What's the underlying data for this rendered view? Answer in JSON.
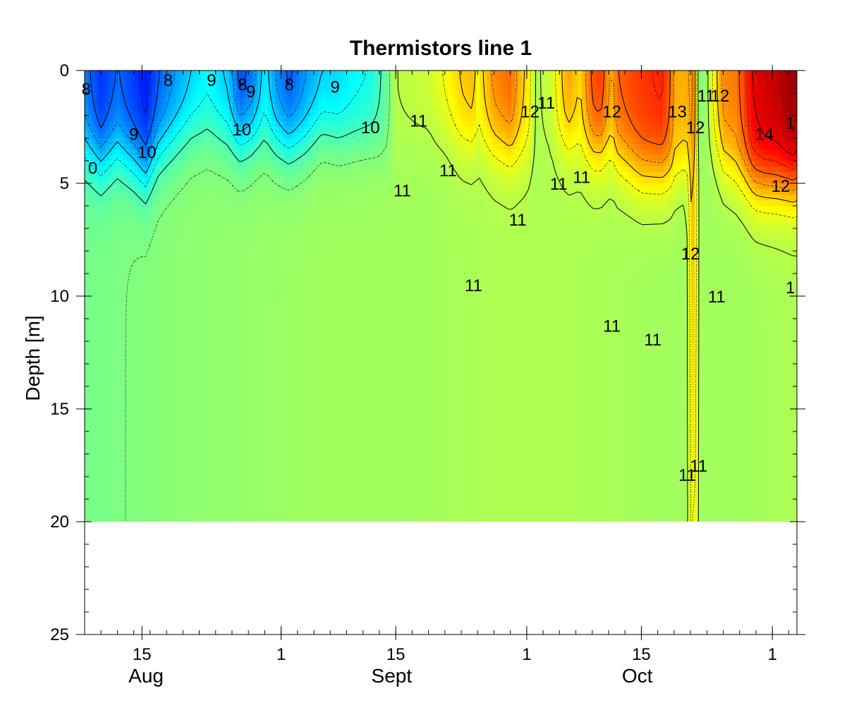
{
  "chart_data": {
    "type": "heatmap",
    "title": "Thermistors line 1",
    "ylabel": "Depth [m]",
    "xlabel": "",
    "ylim": [
      0,
      25
    ],
    "y_inverted": true,
    "data_depth_range": [
      0,
      20
    ],
    "y_ticks": [
      0,
      5,
      10,
      15,
      20,
      25
    ],
    "y_tick_labels": [
      "0",
      "5",
      "10",
      "15",
      "20",
      "25"
    ],
    "x_range_days": [
      0,
      87
    ],
    "x_ticks": [
      {
        "day": 7,
        "label": "15"
      },
      {
        "day": 24,
        "label": "1"
      },
      {
        "day": 38,
        "label": "15"
      },
      {
        "day": 54,
        "label": "1"
      },
      {
        "day": 68,
        "label": "15"
      },
      {
        "day": 84,
        "label": "1"
      }
    ],
    "month_labels": [
      {
        "day": 7.5,
        "label": "Aug"
      },
      {
        "day": 37.5,
        "label": "Sept"
      },
      {
        "day": 67.5,
        "label": "Oct"
      }
    ],
    "colormap": "jet",
    "color_range": [
      6,
      15
    ],
    "contour_labels": [
      {
        "day": 0.2,
        "depth": 0.8,
        "text": "8"
      },
      {
        "day": 10.2,
        "depth": 0.4,
        "text": "8"
      },
      {
        "day": 15.5,
        "depth": 0.4,
        "text": "9"
      },
      {
        "day": 19.3,
        "depth": 0.6,
        "text": "8"
      },
      {
        "day": 20.3,
        "depth": 0.9,
        "text": "9"
      },
      {
        "day": 25.0,
        "depth": 0.6,
        "text": "8"
      },
      {
        "day": 30.6,
        "depth": 0.7,
        "text": "9"
      },
      {
        "day": 6.0,
        "depth": 2.8,
        "text": "9"
      },
      {
        "day": 7.6,
        "depth": 3.6,
        "text": "10"
      },
      {
        "day": 19.2,
        "depth": 2.6,
        "text": "10"
      },
      {
        "day": 34.9,
        "depth": 2.5,
        "text": "10"
      },
      {
        "day": 1.0,
        "depth": 4.3,
        "text": "0"
      },
      {
        "day": 40.8,
        "depth": 2.2,
        "text": "11"
      },
      {
        "day": 44.4,
        "depth": 4.4,
        "text": "11"
      },
      {
        "day": 38.8,
        "depth": 5.3,
        "text": "11"
      },
      {
        "day": 56.4,
        "depth": 1.4,
        "text": "11"
      },
      {
        "day": 54.4,
        "depth": 1.8,
        "text": "12"
      },
      {
        "day": 64.4,
        "depth": 1.8,
        "text": "12"
      },
      {
        "day": 57.9,
        "depth": 5.0,
        "text": "11"
      },
      {
        "day": 60.7,
        "depth": 4.7,
        "text": "11"
      },
      {
        "day": 52.9,
        "depth": 6.6,
        "text": "11"
      },
      {
        "day": 47.5,
        "depth": 9.5,
        "text": "11"
      },
      {
        "day": 72.4,
        "depth": 1.8,
        "text": "13"
      },
      {
        "day": 74.6,
        "depth": 2.5,
        "text": "12"
      },
      {
        "day": 75.9,
        "depth": 1.1,
        "text": "11"
      },
      {
        "day": 77.6,
        "depth": 1.1,
        "text": "12"
      },
      {
        "day": 83.0,
        "depth": 2.8,
        "text": "14"
      },
      {
        "day": 86.2,
        "depth": 2.3,
        "text": "1"
      },
      {
        "day": 85.0,
        "depth": 5.1,
        "text": "12"
      },
      {
        "day": 74.0,
        "depth": 8.1,
        "text": "12"
      },
      {
        "day": 77.2,
        "depth": 10.0,
        "text": "11"
      },
      {
        "day": 86.2,
        "depth": 9.6,
        "text": "1"
      },
      {
        "day": 64.4,
        "depth": 11.3,
        "text": "11"
      },
      {
        "day": 69.4,
        "depth": 11.9,
        "text": "11"
      },
      {
        "day": 75.0,
        "depth": 17.5,
        "text": "11"
      },
      {
        "day": 73.6,
        "depth": 17.9,
        "text": "11"
      }
    ],
    "fields": {
      "surface_temperature": [
        [
          0,
          8.2
        ],
        [
          2,
          7.5
        ],
        [
          4,
          8.0
        ],
        [
          6,
          7.6
        ],
        [
          7.5,
          7.3
        ],
        [
          9,
          7.9
        ],
        [
          10.5,
          8.3
        ],
        [
          13,
          8.9
        ],
        [
          15,
          9.3
        ],
        [
          17.5,
          8.8
        ],
        [
          19,
          7.7
        ],
        [
          20.5,
          8.1
        ],
        [
          22,
          9.2
        ],
        [
          23.5,
          8.3
        ],
        [
          25,
          7.8
        ],
        [
          27,
          8.4
        ],
        [
          29,
          8.9
        ],
        [
          31,
          9.0
        ],
        [
          33,
          9.3
        ],
        [
          35,
          9.5
        ],
        [
          37,
          10.3
        ],
        [
          38,
          11.0
        ],
        [
          40,
          11.1
        ],
        [
          42,
          11.2
        ],
        [
          44,
          11.6
        ],
        [
          46,
          12.1
        ],
        [
          47.5,
          12.3
        ],
        [
          48,
          11.7
        ],
        [
          50,
          12.7
        ],
        [
          52,
          13.0
        ],
        [
          53,
          12.4
        ],
        [
          54.5,
          11.6
        ],
        [
          55,
          10.9
        ],
        [
          57,
          11.2
        ],
        [
          59,
          12.5
        ],
        [
          60.5,
          12.0
        ],
        [
          62,
          13.2
        ],
        [
          63,
          13.4
        ],
        [
          64,
          12.6
        ],
        [
          64.5,
          12.4
        ],
        [
          65,
          13.0
        ],
        [
          67,
          13.3
        ],
        [
          69,
          13.5
        ],
        [
          70.5,
          13.6
        ],
        [
          71.5,
          13.1
        ],
        [
          72,
          12.4
        ],
        [
          73.5,
          12.3
        ],
        [
          74,
          11.5
        ],
        [
          75,
          10.4
        ],
        [
          75.8,
          10.7
        ],
        [
          77,
          11.8
        ],
        [
          78,
          12.7
        ],
        [
          79.5,
          12.8
        ],
        [
          80.5,
          13.3
        ],
        [
          81.5,
          14.0
        ],
        [
          83,
          14.3
        ],
        [
          84.5,
          14.4
        ],
        [
          85.5,
          14.6
        ],
        [
          86.5,
          14.8
        ],
        [
          87,
          14.6
        ]
      ],
      "mixed_layer_depth_m": [
        [
          0,
          3.5
        ],
        [
          2,
          4.0
        ],
        [
          4,
          3.5
        ],
        [
          6,
          4.0
        ],
        [
          7.5,
          4.5
        ],
        [
          9,
          3.5
        ],
        [
          11,
          3.0
        ],
        [
          13,
          2.5
        ],
        [
          15,
          2.5
        ],
        [
          17.5,
          2.8
        ],
        [
          19,
          3.0
        ],
        [
          21,
          2.8
        ],
        [
          23,
          3.0
        ],
        [
          25,
          3.2
        ],
        [
          27,
          3.0
        ],
        [
          29,
          2.5
        ],
        [
          31,
          2.8
        ],
        [
          33,
          2.8
        ],
        [
          35,
          2.8
        ],
        [
          37,
          3.5
        ],
        [
          39,
          3.0
        ],
        [
          42,
          2.5
        ],
        [
          44,
          2.5
        ],
        [
          46,
          3.0
        ],
        [
          48,
          3.0
        ],
        [
          50,
          3.2
        ],
        [
          52,
          3.5
        ],
        [
          54,
          3.5
        ],
        [
          56,
          3.0
        ],
        [
          58,
          3.0
        ],
        [
          60,
          3.2
        ],
        [
          62,
          3.5
        ],
        [
          64,
          3.5
        ],
        [
          66,
          4.0
        ],
        [
          68,
          4.5
        ],
        [
          70,
          4.5
        ],
        [
          72,
          4.5
        ],
        [
          74,
          4.0
        ],
        [
          75,
          3.0
        ],
        [
          76,
          3.0
        ],
        [
          78,
          4.0
        ],
        [
          80,
          4.5
        ],
        [
          82,
          5.0
        ],
        [
          84,
          5.0
        ],
        [
          86,
          5.0
        ],
        [
          87,
          5.0
        ]
      ],
      "deep_temperature": [
        [
          0,
          10.4
        ],
        [
          10,
          10.6
        ],
        [
          20,
          10.7
        ],
        [
          30,
          10.8
        ],
        [
          40,
          10.8
        ],
        [
          50,
          10.9
        ],
        [
          60,
          10.9
        ],
        [
          70,
          10.8
        ],
        [
          80,
          10.8
        ],
        [
          87,
          10.9
        ]
      ],
      "warm_plume": [
        {
          "day": 74.3,
          "width_days": 1.0,
          "max_depth_m": 20,
          "amplitude": 1.6
        }
      ]
    }
  }
}
